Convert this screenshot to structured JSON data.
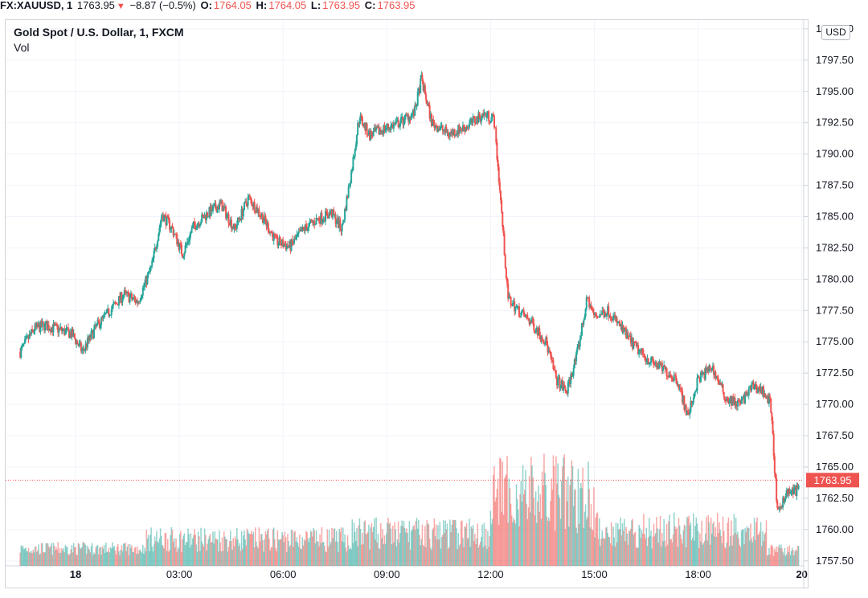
{
  "header": {
    "symbol": "FX:XAUUSD, 1",
    "last": "1763.95",
    "direction_icon": "down-triangle-icon",
    "change": "−8.87 (−0.5%)",
    "open_label": "O:",
    "open": "1764.05",
    "high_label": "H:",
    "high": "1764.05",
    "low_label": "L:",
    "low": "1763.95",
    "close_label": "C:",
    "close": "1763.95"
  },
  "legend": {
    "title": "Gold Spot / U.S. Dollar, 1, FXCM",
    "volume_label": "Vol"
  },
  "currency_button": "USD",
  "colors": {
    "up": "#26a69a",
    "down": "#ef5350",
    "grid": "#f0f3fa",
    "axis": "#d1d4dc",
    "price_line": "#ef5350"
  },
  "chart_data": {
    "type": "candlestick",
    "title": "Gold Spot / U.S. Dollar, 1, FXCM",
    "timeframe": "1 minute",
    "currency": "USD",
    "y_axis": {
      "ticks": [
        "1800.00",
        "1797.50",
        "1795.00",
        "1792.50",
        "1790.00",
        "1787.50",
        "1785.00",
        "1782.50",
        "1780.00",
        "1777.50",
        "1775.00",
        "1772.50",
        "1770.00",
        "1767.50",
        "1765.00",
        "1762.50",
        "1760.00",
        "1757.50"
      ],
      "range": [
        1757.1,
        1800.7
      ]
    },
    "x_axis": {
      "ticks": [
        {
          "label": "18",
          "bold": true
        },
        {
          "label": "03:00",
          "bold": false
        },
        {
          "label": "06:00",
          "bold": false
        },
        {
          "label": "09:00",
          "bold": false
        },
        {
          "label": "12:00",
          "bold": false
        },
        {
          "label": "15:00",
          "bold": false
        },
        {
          "label": "18:00",
          "bold": false
        },
        {
          "label": "20",
          "bold": true
        }
      ]
    },
    "last_price": "1763.95",
    "price_path": [
      [
        -1.6,
        1774.2
      ],
      [
        -1.2,
        1776.0
      ],
      [
        -0.9,
        1776.3
      ],
      [
        -0.5,
        1776.0
      ],
      [
        -0.1,
        1775.6
      ],
      [
        0.2,
        1774.2
      ],
      [
        0.6,
        1776.2
      ],
      [
        1.0,
        1777.5
      ],
      [
        1.4,
        1778.8
      ],
      [
        1.8,
        1778.2
      ],
      [
        2.2,
        1781.0
      ],
      [
        2.5,
        1785.2
      ],
      [
        2.8,
        1784.0
      ],
      [
        3.1,
        1782.0
      ],
      [
        3.4,
        1784.2
      ],
      [
        3.8,
        1785.2
      ],
      [
        4.2,
        1786.0
      ],
      [
        4.6,
        1784.0
      ],
      [
        5.0,
        1786.5
      ],
      [
        5.4,
        1785.0
      ],
      [
        5.8,
        1783.0
      ],
      [
        6.2,
        1782.6
      ],
      [
        6.6,
        1784.0
      ],
      [
        7.0,
        1784.8
      ],
      [
        7.4,
        1785.3
      ],
      [
        7.7,
        1784.0
      ],
      [
        8.0,
        1789.0
      ],
      [
        8.2,
        1793.0
      ],
      [
        8.5,
        1791.5
      ],
      [
        8.9,
        1792.0
      ],
      [
        9.3,
        1792.4
      ],
      [
        9.8,
        1793.3
      ],
      [
        10.0,
        1796.0
      ],
      [
        10.3,
        1792.5
      ],
      [
        10.8,
        1791.6
      ],
      [
        11.3,
        1792.2
      ],
      [
        11.8,
        1793.2
      ],
      [
        12.1,
        1792.8
      ],
      [
        12.3,
        1786.0
      ],
      [
        12.5,
        1778.5
      ],
      [
        12.8,
        1777.5
      ],
      [
        13.2,
        1776.5
      ],
      [
        13.6,
        1775.0
      ],
      [
        13.9,
        1772.0
      ],
      [
        14.2,
        1771.0
      ],
      [
        14.5,
        1774.0
      ],
      [
        14.8,
        1778.5
      ],
      [
        15.0,
        1777.0
      ],
      [
        15.4,
        1777.5
      ],
      [
        15.8,
        1776.0
      ],
      [
        16.2,
        1774.5
      ],
      [
        16.6,
        1773.5
      ],
      [
        17.0,
        1772.8
      ],
      [
        17.4,
        1772.0
      ],
      [
        17.7,
        1769.0
      ],
      [
        18.0,
        1772.0
      ],
      [
        18.4,
        1773.0
      ],
      [
        18.8,
        1770.5
      ],
      [
        19.2,
        1770.0
      ],
      [
        19.6,
        1771.5
      ],
      [
        19.9,
        1771.0
      ],
      [
        20.1,
        1770.0
      ],
      [
        20.3,
        1761.0
      ],
      [
        20.5,
        1762.8
      ],
      [
        20.9,
        1763.2
      ],
      [
        21.2,
        1763.95
      ]
    ]
  }
}
